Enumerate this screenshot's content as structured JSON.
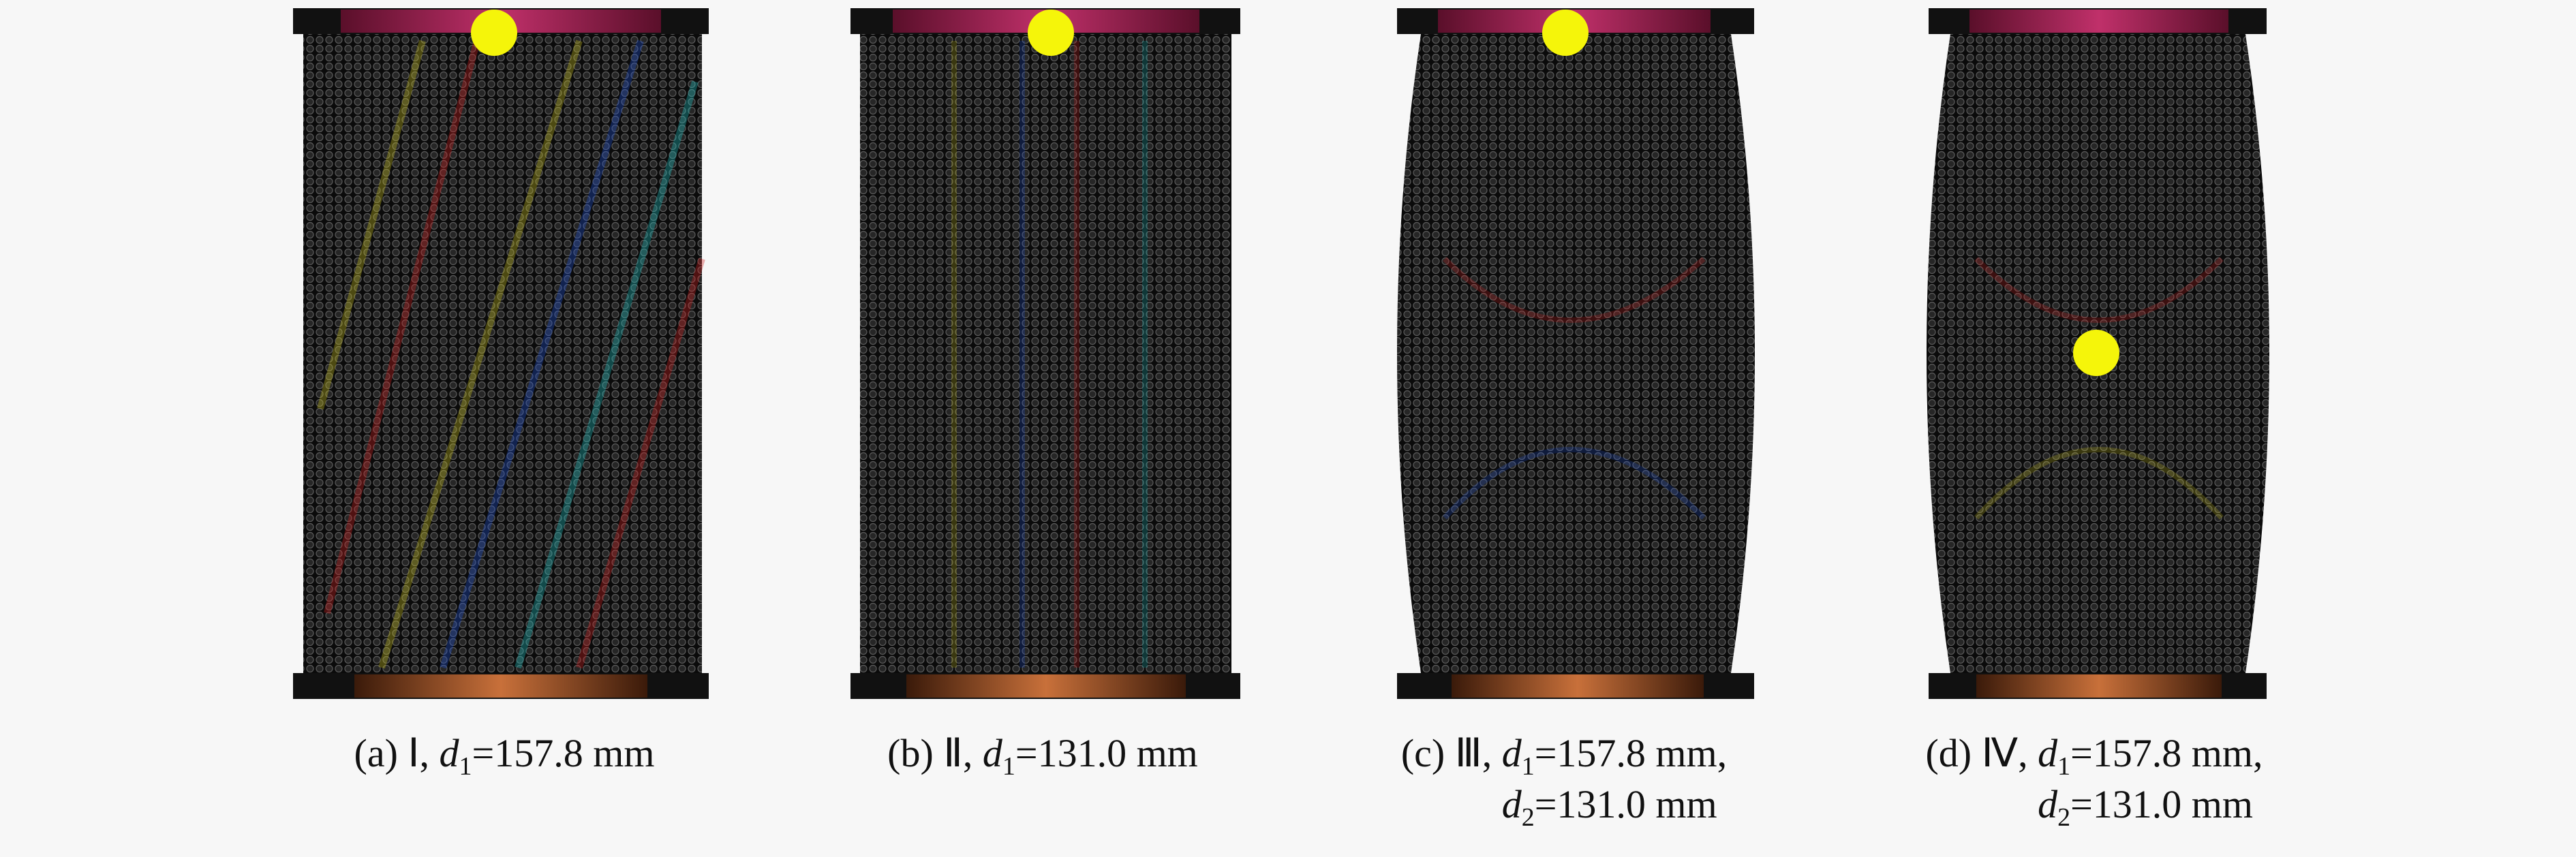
{
  "panels": [
    {
      "lines": [
        [
          {
            "text": "(a)  Ⅰ, "
          },
          {
            "text": "d",
            "style": "italic"
          },
          {
            "text": "1",
            "style": "sub"
          },
          {
            "text": "=157.8 mm"
          }
        ]
      ]
    },
    {
      "lines": [
        [
          {
            "text": "(b)  Ⅱ, "
          },
          {
            "text": "d",
            "style": "italic"
          },
          {
            "text": "1",
            "style": "sub"
          },
          {
            "text": "=131.0 mm"
          }
        ]
      ]
    },
    {
      "lines": [
        [
          {
            "text": "(c)  Ⅲ, "
          },
          {
            "text": "d",
            "style": "italic"
          },
          {
            "text": "1",
            "style": "sub"
          },
          {
            "text": "=157.8 mm,"
          }
        ],
        [
          {
            "text": "d",
            "style": "italic"
          },
          {
            "text": "2",
            "style": "sub"
          },
          {
            "text": "=131.0 mm"
          }
        ]
      ]
    },
    {
      "lines": [
        [
          {
            "text": "(d)  Ⅳ, "
          },
          {
            "text": "d",
            "style": "italic"
          },
          {
            "text": "1",
            "style": "sub"
          },
          {
            "text": "=157.8 mm,"
          }
        ],
        [
          {
            "text": "d",
            "style": "italic"
          },
          {
            "text": "2",
            "style": "sub"
          },
          {
            "text": "=131.0 mm"
          }
        ]
      ]
    }
  ]
}
